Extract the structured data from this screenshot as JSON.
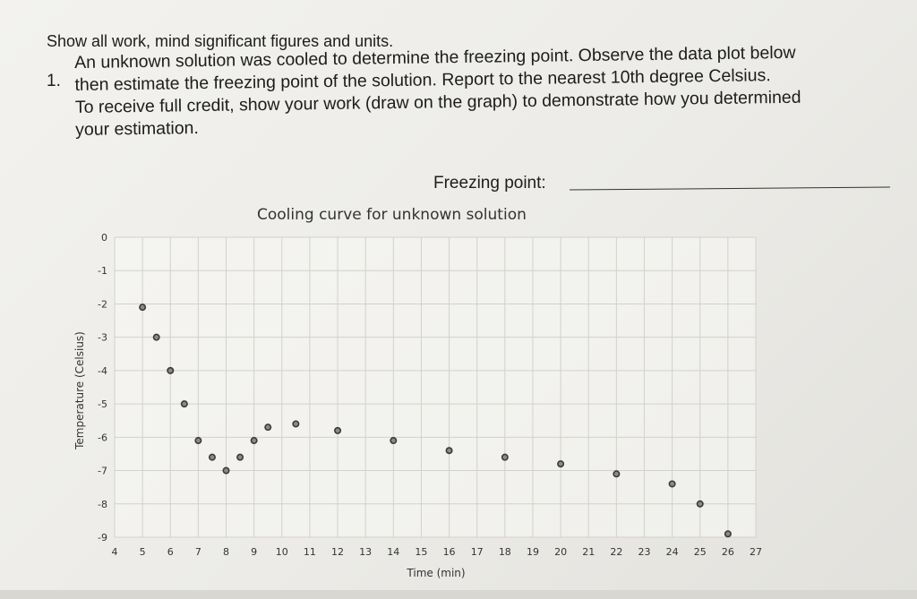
{
  "header": {
    "instructions": "Show all work, mind significant figures and units."
  },
  "question": {
    "number": "1.",
    "lines": [
      "An unknown solution was cooled to determine the freezing point. Observe the data plot below",
      "then estimate the freezing point of the solution.  Report to the nearest 10th degree Celsius.",
      "To receive full credit, show your work (draw on the graph) to demonstrate how you determined",
      "your estimation."
    ],
    "answer_label": "Freezing point:",
    "answer_value": ""
  },
  "chart_data": {
    "type": "scatter",
    "title": "Cooling curve for unknown solution",
    "xlabel": "Time (min)",
    "ylabel": "Temperature (Celsius)",
    "xlim": [
      4,
      27
    ],
    "ylim": [
      -9,
      0
    ],
    "x_ticks": [
      "4",
      "5",
      "6",
      "7",
      "8",
      "9",
      "10",
      "11",
      "12",
      "13",
      "14",
      "15",
      "16",
      "17",
      "18",
      "19",
      "20",
      "21",
      "22",
      "23",
      "24",
      "25",
      "26",
      "27"
    ],
    "y_ticks": [
      "0",
      "-1",
      "-2",
      "-3",
      "-4",
      "-5",
      "-6",
      "-7",
      "-8",
      "-9"
    ],
    "grid": true,
    "series": [
      {
        "color": "#3a3a3a",
        "points": [
          [
            5,
            -2.1
          ],
          [
            5.5,
            -3.0
          ],
          [
            6,
            -4.0
          ],
          [
            6.5,
            -5.0
          ],
          [
            7,
            -6.1
          ],
          [
            7.5,
            -6.6
          ],
          [
            8,
            -7.0
          ],
          [
            8.5,
            -6.6
          ],
          [
            9,
            -6.1
          ],
          [
            9.5,
            -5.7
          ],
          [
            10.5,
            -5.6
          ],
          [
            12,
            -5.8
          ],
          [
            14,
            -6.1
          ],
          [
            16,
            -6.4
          ],
          [
            18,
            -6.6
          ],
          [
            20,
            -6.8
          ],
          [
            22,
            -7.1
          ],
          [
            24,
            -7.4
          ],
          [
            25,
            -8.0
          ],
          [
            26,
            -8.9
          ]
        ]
      }
    ]
  }
}
